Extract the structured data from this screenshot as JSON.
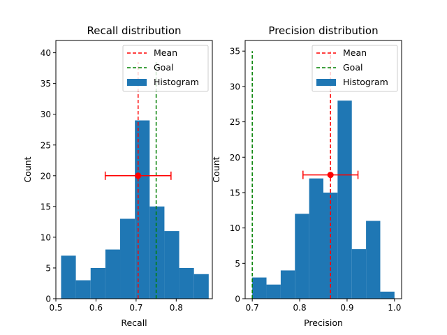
{
  "chart_data": [
    {
      "type": "bar",
      "title": "Recall distribution",
      "xlabel": "Recall",
      "ylabel": "Count",
      "xlim": [
        0.5,
        0.89
      ],
      "ylim": [
        0,
        42
      ],
      "xticks": [
        0.5,
        0.6,
        0.7,
        0.8
      ],
      "xtick_labels": [
        "0.5",
        "0.6",
        "0.7",
        "0.8"
      ],
      "yticks": [
        0,
        5,
        10,
        15,
        20,
        25,
        30,
        35,
        40
      ],
      "ytick_labels": [
        "0",
        "5",
        "10",
        "15",
        "20",
        "25",
        "30",
        "35",
        "40"
      ],
      "bins": [
        0.513,
        0.5498,
        0.5866,
        0.6234,
        0.6602,
        0.697,
        0.7338,
        0.7706,
        0.8074,
        0.8442,
        0.881
      ],
      "counts": [
        7,
        3,
        5,
        8,
        13,
        29,
        15,
        11,
        5,
        4
      ],
      "mean": 0.705,
      "mean_y": 20,
      "error_range": [
        0.623,
        0.787
      ],
      "goal": 0.75,
      "line_top": 38.5,
      "grid": false,
      "legend_position": "upper right",
      "legend": [
        "Mean",
        "Goal",
        "Histogram"
      ]
    },
    {
      "type": "bar",
      "title": "Precision distribution",
      "xlabel": "Precision",
      "ylabel": "Count",
      "xlim": [
        0.685,
        1.015
      ],
      "ylim": [
        0,
        36.5
      ],
      "xticks": [
        0.7,
        0.8,
        0.9,
        1.0
      ],
      "xtick_labels": [
        "0.7",
        "0.8",
        "0.9",
        "1.0"
      ],
      "yticks": [
        0,
        5,
        10,
        15,
        20,
        25,
        30,
        35
      ],
      "ytick_labels": [
        "0",
        "5",
        "10",
        "15",
        "20",
        "25",
        "30",
        "35"
      ],
      "bins": [
        0.7,
        0.73,
        0.76,
        0.79,
        0.82,
        0.85,
        0.88,
        0.91,
        0.94,
        0.97,
        1.0
      ],
      "counts": [
        3,
        2,
        4,
        12,
        17,
        15,
        28,
        7,
        11,
        1
      ],
      "mean": 0.865,
      "mean_y": 17.5,
      "error_range": [
        0.807,
        0.923
      ],
      "goal": 0.7,
      "line_top": 35,
      "grid": false,
      "legend_position": "upper right",
      "legend": [
        "Mean",
        "Goal",
        "Histogram"
      ]
    }
  ],
  "colors": {
    "histogram": "#1f77b4",
    "mean": "#ff0000",
    "goal": "#008000",
    "axis": "#000000"
  }
}
